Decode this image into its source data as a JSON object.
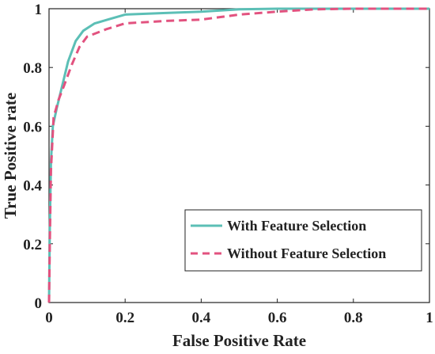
{
  "chart_data": {
    "type": "line",
    "title": "",
    "xlabel": "False Positive Rate",
    "ylabel": "True Positive rate",
    "xlim": [
      0,
      1
    ],
    "ylim": [
      0,
      1
    ],
    "x_ticks": [
      "0",
      "0.2",
      "0.4",
      "0.6",
      "0.8",
      "1"
    ],
    "y_ticks": [
      "0",
      "0.2",
      "0.4",
      "0.6",
      "0.8",
      "1"
    ],
    "grid": false,
    "legend_position": "bottom-right",
    "series": [
      {
        "name": "With Feature Selection",
        "color": "#5cbfb6",
        "line_style": "solid",
        "points": [
          [
            0.0,
            0.0
          ],
          [
            0.002,
            0.25
          ],
          [
            0.005,
            0.48
          ],
          [
            0.01,
            0.6
          ],
          [
            0.02,
            0.66
          ],
          [
            0.035,
            0.74
          ],
          [
            0.05,
            0.82
          ],
          [
            0.07,
            0.89
          ],
          [
            0.09,
            0.925
          ],
          [
            0.12,
            0.95
          ],
          [
            0.16,
            0.965
          ],
          [
            0.2,
            0.98
          ],
          [
            0.3,
            0.985
          ],
          [
            0.4,
            0.99
          ],
          [
            0.5,
            0.998
          ],
          [
            0.6,
            1.0
          ],
          [
            0.8,
            1.0
          ],
          [
            1.0,
            1.0
          ]
        ]
      },
      {
        "name": "Without Feature Selection",
        "color": "#e2527f",
        "line_style": "dashed",
        "points": [
          [
            0.0,
            0.0
          ],
          [
            0.002,
            0.2
          ],
          [
            0.005,
            0.45
          ],
          [
            0.012,
            0.63
          ],
          [
            0.025,
            0.69
          ],
          [
            0.04,
            0.74
          ],
          [
            0.06,
            0.81
          ],
          [
            0.08,
            0.87
          ],
          [
            0.1,
            0.905
          ],
          [
            0.15,
            0.93
          ],
          [
            0.2,
            0.95
          ],
          [
            0.3,
            0.958
          ],
          [
            0.4,
            0.963
          ],
          [
            0.5,
            0.98
          ],
          [
            0.6,
            0.99
          ],
          [
            0.7,
            0.998
          ],
          [
            0.8,
            1.0
          ],
          [
            1.0,
            1.0
          ]
        ]
      }
    ]
  }
}
